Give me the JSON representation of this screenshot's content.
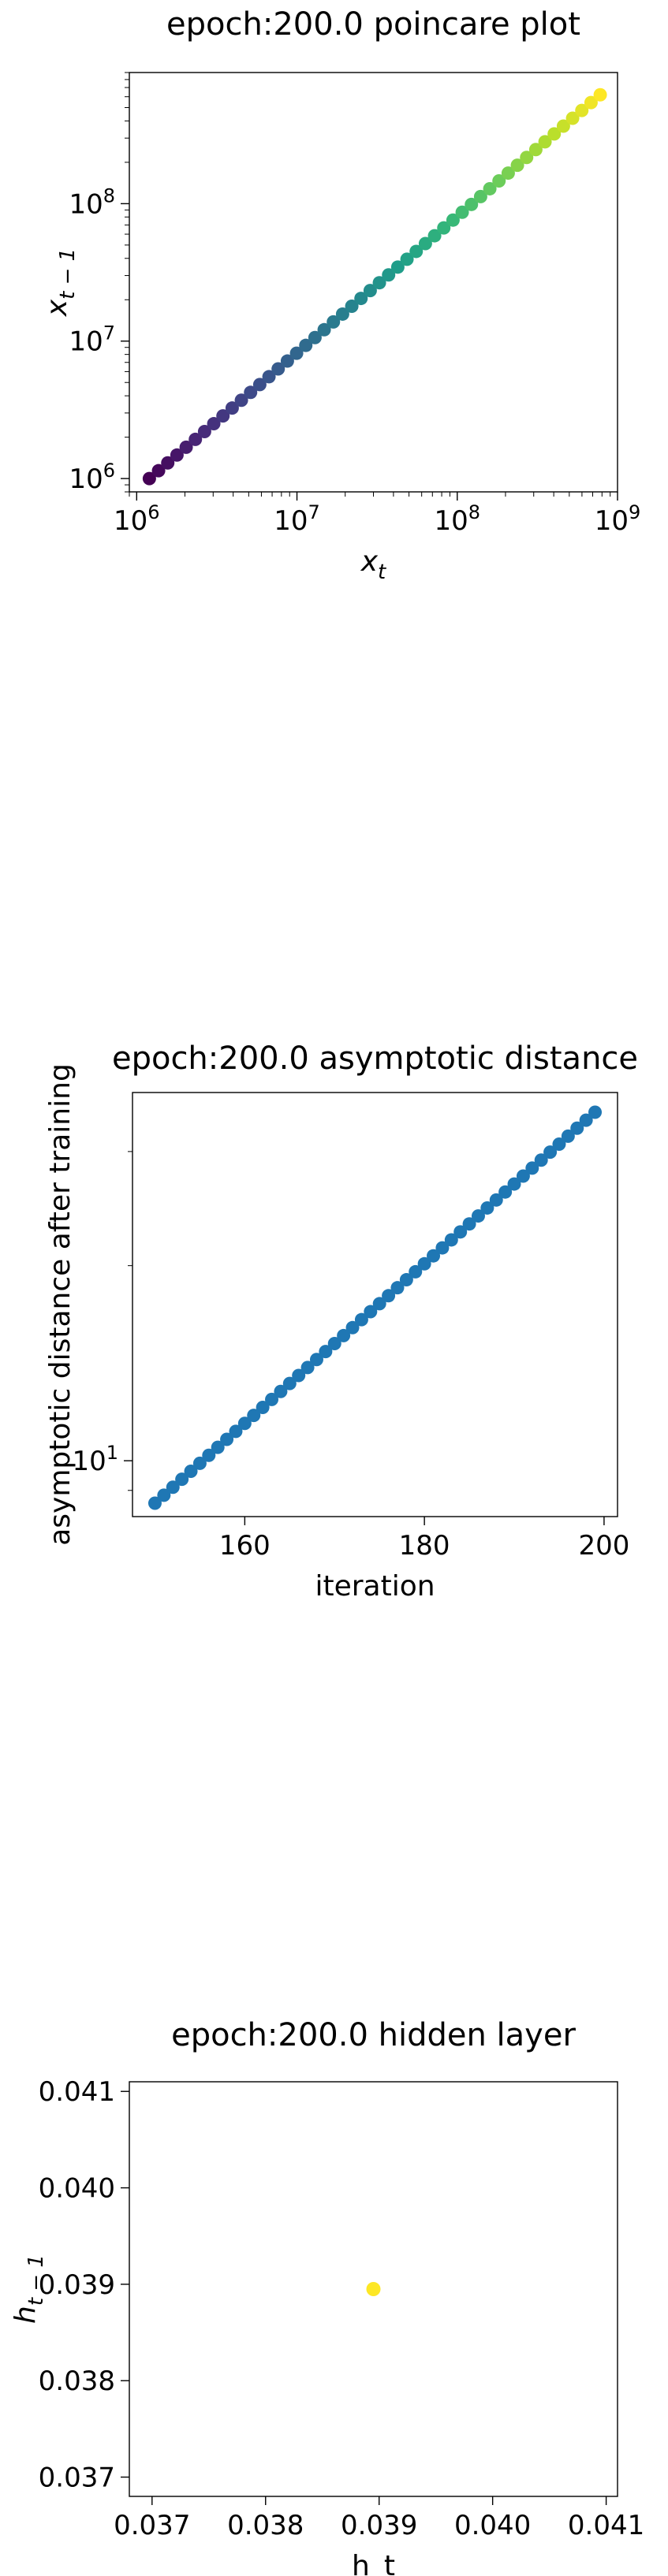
{
  "chart_data": [
    {
      "type": "scatter",
      "title": "epoch:200.0 poincare plot",
      "xlabel": "x_t",
      "ylabel": "x_{t-1}",
      "xscale": "log",
      "yscale": "log",
      "xlim": [
        900000,
        1000000000
      ],
      "ylim": [
        800000,
        900000000
      ],
      "x_ticks": [
        {
          "value": 1000000,
          "label": "10",
          "exp": "6"
        },
        {
          "value": 10000000,
          "label": "10",
          "exp": "7"
        },
        {
          "value": 100000000,
          "label": "10",
          "exp": "8"
        },
        {
          "value": 1000000000,
          "label": "10",
          "exp": "9"
        }
      ],
      "y_ticks": [
        {
          "value": 1000000,
          "label": "10",
          "exp": "6"
        },
        {
          "value": 10000000,
          "label": "10",
          "exp": "7"
        },
        {
          "value": 100000000,
          "label": "10",
          "exp": "8"
        }
      ],
      "colormap": "viridis",
      "x_start": 1200000,
      "x_end": 780000000,
      "y_start": 1000000,
      "y_end": 620000000,
      "n_points": 50,
      "grid": false
    },
    {
      "type": "scatter",
      "title": "epoch:200.0 asymptotic distance",
      "xlabel": "iteration",
      "ylabel": "asymptotic distance after training",
      "yscale": "log",
      "xlim": [
        147.5,
        201.5
      ],
      "ylim": [
        8.2,
        37.0
      ],
      "x_ticks": [
        {
          "value": 160,
          "label": "160"
        },
        {
          "value": 180,
          "label": "180"
        },
        {
          "value": 200,
          "label": "200"
        }
      ],
      "y_ticks": [
        {
          "value": 10,
          "label": "10",
          "exp": "1"
        }
      ],
      "x_start": 150,
      "x_end": 199,
      "y_start": 8.6,
      "y_end": 34.5,
      "color": "#1f77b4",
      "grid": false
    },
    {
      "type": "scatter",
      "title": "epoch:200.0 hidden layer",
      "xlabel": "h_t",
      "ylabel": "h_{t-1}",
      "xlim": [
        0.0368,
        0.0411
      ],
      "ylim": [
        0.0368,
        0.0411
      ],
      "x_ticks": [
        {
          "value": 0.037,
          "label": "0.037"
        },
        {
          "value": 0.038,
          "label": "0.038"
        },
        {
          "value": 0.039,
          "label": "0.039"
        },
        {
          "value": 0.04,
          "label": "0.040"
        },
        {
          "value": 0.041,
          "label": "0.041"
        }
      ],
      "y_ticks": [
        {
          "value": 0.037,
          "label": "0.037"
        },
        {
          "value": 0.038,
          "label": "0.038"
        },
        {
          "value": 0.039,
          "label": "0.039"
        },
        {
          "value": 0.04,
          "label": "0.040"
        },
        {
          "value": 0.041,
          "label": "0.041"
        }
      ],
      "points": [
        {
          "x": 0.03895,
          "y": 0.03895
        }
      ],
      "color": "#fde725",
      "grid": false
    }
  ]
}
